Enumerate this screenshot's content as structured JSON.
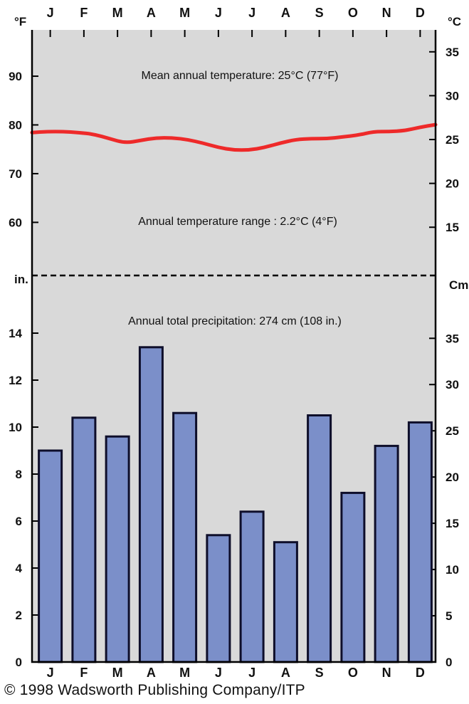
{
  "chart_data": {
    "type": "climograph",
    "months": [
      "J",
      "F",
      "M",
      "A",
      "M",
      "J",
      "J",
      "A",
      "S",
      "O",
      "N",
      "D"
    ],
    "temperature": {
      "unit_left": "°F",
      "unit_right": "°C",
      "series_c": [
        {
          "x": 0.0,
          "y": 25.8
        },
        {
          "x": 0.5,
          "y": 25.9
        },
        {
          "x": 1.0,
          "y": 25.9
        },
        {
          "x": 1.5,
          "y": 25.8
        },
        {
          "x": 2.0,
          "y": 25.6
        },
        {
          "x": 2.5,
          "y": 25.1
        },
        {
          "x": 3.0,
          "y": 24.6
        },
        {
          "x": 3.5,
          "y": 24.9
        },
        {
          "x": 4.0,
          "y": 25.2
        },
        {
          "x": 4.5,
          "y": 25.2
        },
        {
          "x": 5.0,
          "y": 25.0
        },
        {
          "x": 5.5,
          "y": 24.6
        },
        {
          "x": 6.0,
          "y": 24.1
        },
        {
          "x": 6.5,
          "y": 23.8
        },
        {
          "x": 7.0,
          "y": 23.8
        },
        {
          "x": 7.5,
          "y": 24.1
        },
        {
          "x": 8.0,
          "y": 24.6
        },
        {
          "x": 8.5,
          "y": 25.0
        },
        {
          "x": 9.0,
          "y": 25.1
        },
        {
          "x": 9.5,
          "y": 25.1
        },
        {
          "x": 10.0,
          "y": 25.3
        },
        {
          "x": 10.5,
          "y": 25.5
        },
        {
          "x": 11.0,
          "y": 25.9
        },
        {
          "x": 11.5,
          "y": 25.9
        },
        {
          "x": 12.0,
          "y": 26.0
        },
        {
          "x": 12.5,
          "y": 26.4
        },
        {
          "x": 13.0,
          "y": 26.7
        }
      ],
      "f_ticks": [
        60,
        70,
        80,
        90
      ],
      "c_ticks": [
        15,
        20,
        25,
        30,
        35
      ],
      "c_range": [
        9.5,
        37.5
      ],
      "mean_label": "Mean annual temperature: 25°C (77°F)",
      "range_label": "Annual temperature range : 2.2°C (4°F)"
    },
    "precipitation": {
      "unit_left": "in.",
      "unit_right": "Cm",
      "values_in": [
        9.0,
        10.4,
        9.6,
        13.4,
        10.6,
        5.4,
        6.4,
        5.1,
        10.5,
        7.2,
        9.2,
        10.2
      ],
      "in_ticks": [
        0,
        2,
        4,
        6,
        8,
        10,
        12,
        14
      ],
      "cm_ticks": [
        0,
        5,
        10,
        15,
        20,
        25,
        30,
        35
      ],
      "ylim_in": [
        0,
        14.5
      ],
      "total_label": "Annual total precipitation: 274 cm (108 in.)"
    },
    "colors": {
      "background": "#d9d9d9",
      "line": "#ee2a2a",
      "bar": "#7b8fc9",
      "bar_border": "#0e0e2a",
      "axis": "#000000"
    }
  },
  "credit": "© 1998 Wadsworth Publishing Company/ITP"
}
